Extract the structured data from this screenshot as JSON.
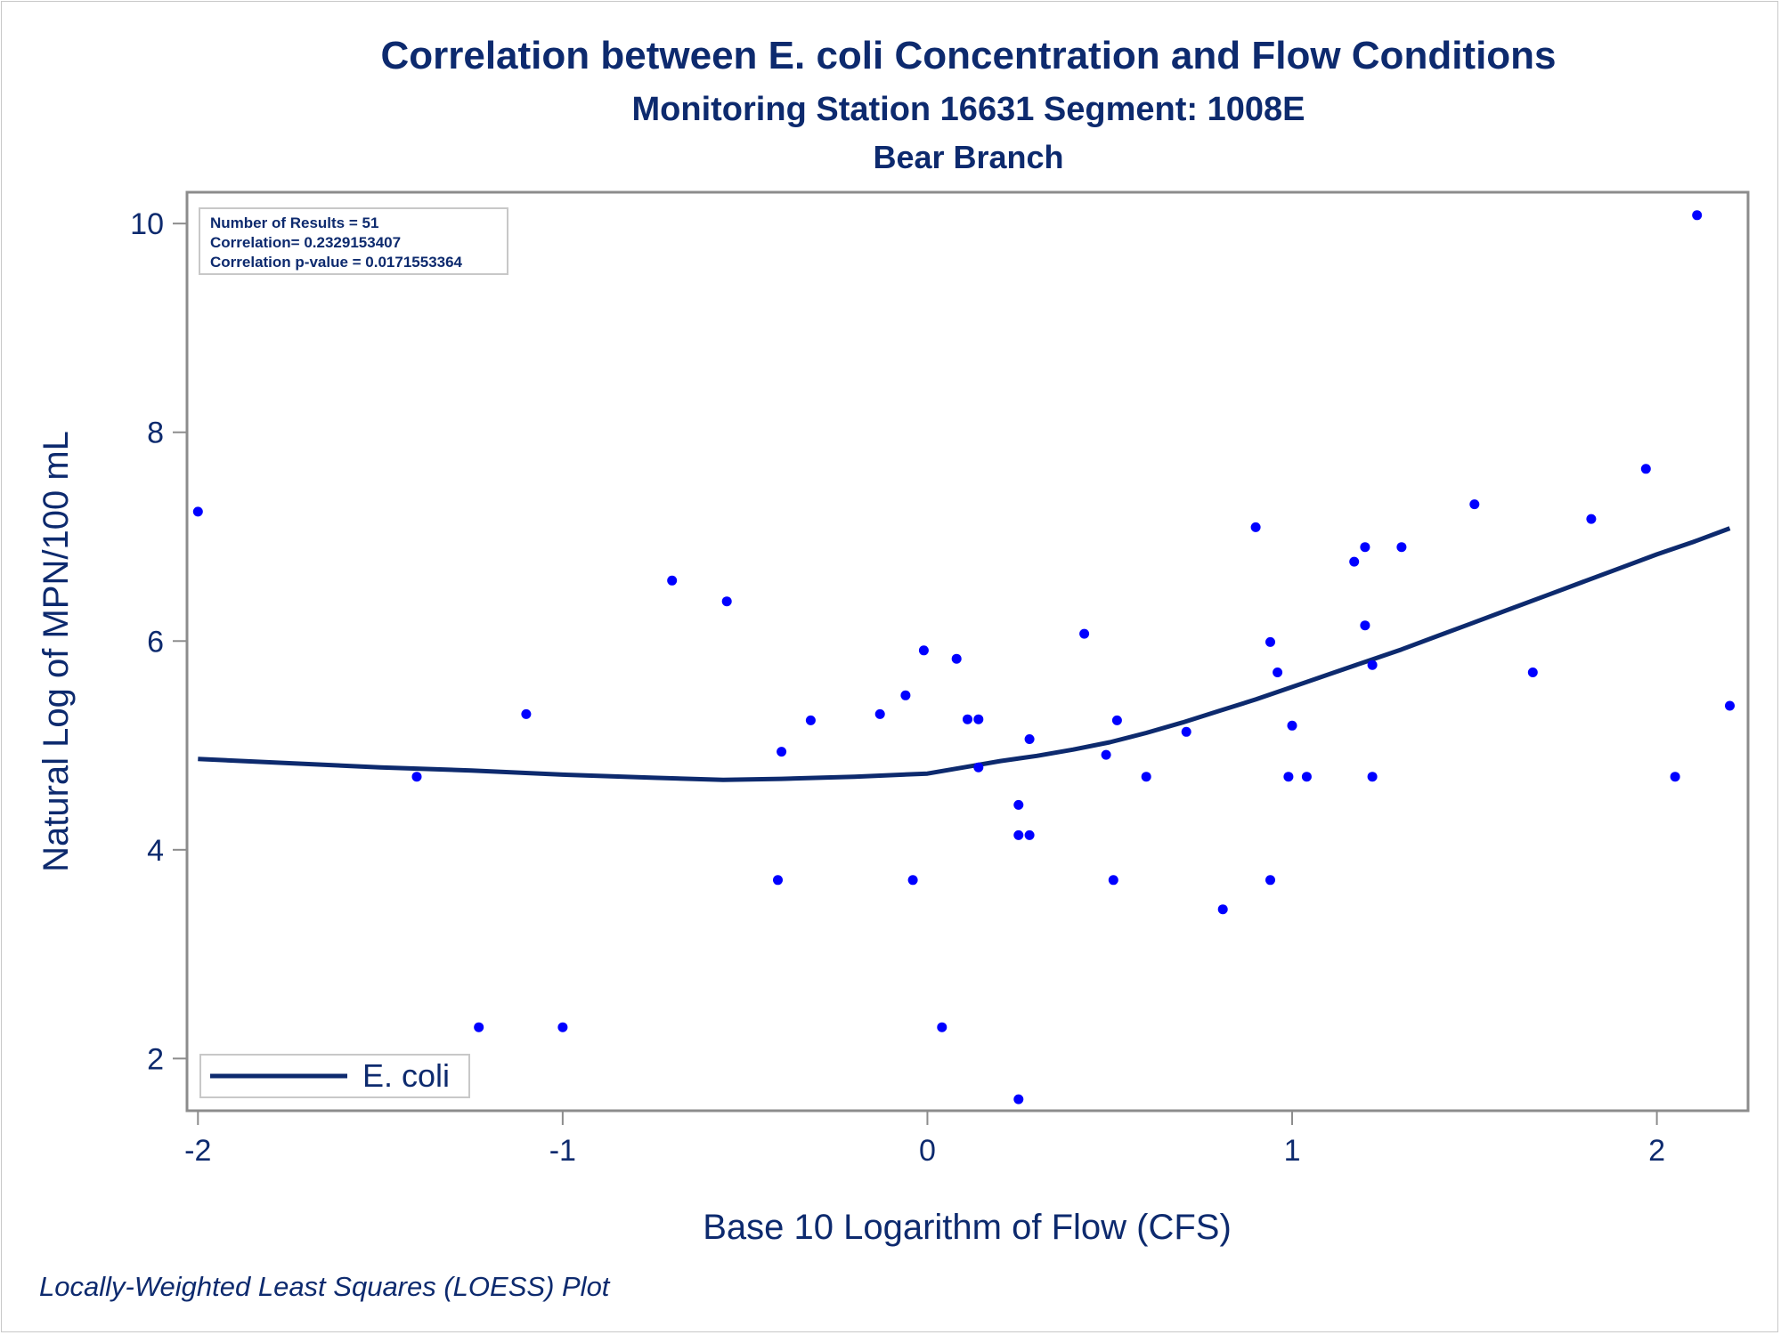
{
  "titles": {
    "title": "Correlation between E. coli Concentration and Flow Conditions",
    "subtitle": "Monitoring Station 16631 Segment: 1008E",
    "subtitle2": "Bear Branch"
  },
  "footnote": "Locally-Weighted Least Squares (LOESS) Plot",
  "stats_box": {
    "line1": "Number of Results = 51",
    "line2": "Correlation= 0.2329153407",
    "line3": "Correlation p-value = 0.0171553364"
  },
  "colors": {
    "text": "#0d2a6e",
    "points": "#0000ff",
    "curve": "#0d2a6e",
    "axis": "#8c8c8c"
  },
  "chart_data": {
    "type": "scatter",
    "xlabel": "Base 10 Logarithm of Flow (CFS)",
    "ylabel": "Natural Log of MPN/100 mL",
    "xlim": [
      -2.03,
      2.25
    ],
    "ylim": [
      1.5,
      10.3
    ],
    "xticks": [
      -2,
      -1,
      0,
      1,
      2
    ],
    "xtick_labels": [
      "-2",
      "-1",
      "0",
      "1",
      "2"
    ],
    "yticks": [
      2,
      4,
      6,
      8,
      10
    ],
    "ytick_labels": [
      "2",
      "4",
      "6",
      "8",
      "10"
    ],
    "grid": false,
    "legend": {
      "position": "bottom-left",
      "entries": [
        "E. coli"
      ]
    },
    "points": [
      {
        "x": -2.0,
        "y": 7.24
      },
      {
        "x": -1.4,
        "y": 4.7
      },
      {
        "x": -1.23,
        "y": 2.3
      },
      {
        "x": -1.1,
        "y": 5.3
      },
      {
        "x": -1.0,
        "y": 2.3
      },
      {
        "x": -0.7,
        "y": 6.58
      },
      {
        "x": -0.55,
        "y": 6.38
      },
      {
        "x": -0.41,
        "y": 3.71
      },
      {
        "x": -0.4,
        "y": 4.94
      },
      {
        "x": -0.32,
        "y": 5.24
      },
      {
        "x": -0.13,
        "y": 5.3
      },
      {
        "x": -0.06,
        "y": 5.48
      },
      {
        "x": -0.04,
        "y": 3.71
      },
      {
        "x": -0.01,
        "y": 5.91
      },
      {
        "x": 0.04,
        "y": 2.3
      },
      {
        "x": 0.08,
        "y": 5.83
      },
      {
        "x": 0.11,
        "y": 5.25
      },
      {
        "x": 0.14,
        "y": 5.25
      },
      {
        "x": 0.14,
        "y": 4.79
      },
      {
        "x": 0.25,
        "y": 4.43
      },
      {
        "x": 0.25,
        "y": 4.14
      },
      {
        "x": 0.28,
        "y": 4.14
      },
      {
        "x": 0.25,
        "y": 1.61
      },
      {
        "x": 0.28,
        "y": 5.06
      },
      {
        "x": 0.43,
        "y": 6.07
      },
      {
        "x": 0.49,
        "y": 4.91
      },
      {
        "x": 0.51,
        "y": 3.71
      },
      {
        "x": 0.52,
        "y": 5.24
      },
      {
        "x": 0.6,
        "y": 4.7
      },
      {
        "x": 0.71,
        "y": 5.13
      },
      {
        "x": 0.81,
        "y": 3.43
      },
      {
        "x": 0.9,
        "y": 7.09
      },
      {
        "x": 0.94,
        "y": 5.99
      },
      {
        "x": 0.94,
        "y": 3.71
      },
      {
        "x": 0.96,
        "y": 5.7
      },
      {
        "x": 0.99,
        "y": 4.7
      },
      {
        "x": 1.0,
        "y": 5.19
      },
      {
        "x": 1.04,
        "y": 4.7
      },
      {
        "x": 1.17,
        "y": 6.76
      },
      {
        "x": 1.2,
        "y": 6.9
      },
      {
        "x": 1.2,
        "y": 6.15
      },
      {
        "x": 1.22,
        "y": 5.77
      },
      {
        "x": 1.22,
        "y": 4.7
      },
      {
        "x": 1.3,
        "y": 6.9
      },
      {
        "x": 1.5,
        "y": 7.31
      },
      {
        "x": 1.66,
        "y": 5.7
      },
      {
        "x": 1.82,
        "y": 7.17
      },
      {
        "x": 1.97,
        "y": 7.65
      },
      {
        "x": 2.05,
        "y": 4.7
      },
      {
        "x": 2.11,
        "y": 10.08
      },
      {
        "x": 2.2,
        "y": 5.38
      }
    ],
    "loess_curve": {
      "name": "E. coli",
      "points": [
        {
          "x": -2.0,
          "y": 4.87
        },
        {
          "x": -1.75,
          "y": 4.83
        },
        {
          "x": -1.5,
          "y": 4.79
        },
        {
          "x": -1.25,
          "y": 4.76
        },
        {
          "x": -1.0,
          "y": 4.72
        },
        {
          "x": -0.75,
          "y": 4.69
        },
        {
          "x": -0.56,
          "y": 4.67
        },
        {
          "x": -0.4,
          "y": 4.68
        },
        {
          "x": -0.2,
          "y": 4.7
        },
        {
          "x": 0.0,
          "y": 4.73
        },
        {
          "x": 0.1,
          "y": 4.79
        },
        {
          "x": 0.2,
          "y": 4.85
        },
        {
          "x": 0.3,
          "y": 4.9
        },
        {
          "x": 0.4,
          "y": 4.96
        },
        {
          "x": 0.5,
          "y": 5.03
        },
        {
          "x": 0.6,
          "y": 5.12
        },
        {
          "x": 0.7,
          "y": 5.22
        },
        {
          "x": 0.8,
          "y": 5.33
        },
        {
          "x": 0.9,
          "y": 5.44
        },
        {
          "x": 1.0,
          "y": 5.56
        },
        {
          "x": 1.1,
          "y": 5.68
        },
        {
          "x": 1.2,
          "y": 5.8
        },
        {
          "x": 1.3,
          "y": 5.92
        },
        {
          "x": 1.4,
          "y": 6.05
        },
        {
          "x": 1.5,
          "y": 6.18
        },
        {
          "x": 1.6,
          "y": 6.31
        },
        {
          "x": 1.7,
          "y": 6.44
        },
        {
          "x": 1.8,
          "y": 6.57
        },
        {
          "x": 1.9,
          "y": 6.7
        },
        {
          "x": 2.0,
          "y": 6.83
        },
        {
          "x": 2.1,
          "y": 6.95
        },
        {
          "x": 2.2,
          "y": 7.08
        }
      ]
    }
  }
}
